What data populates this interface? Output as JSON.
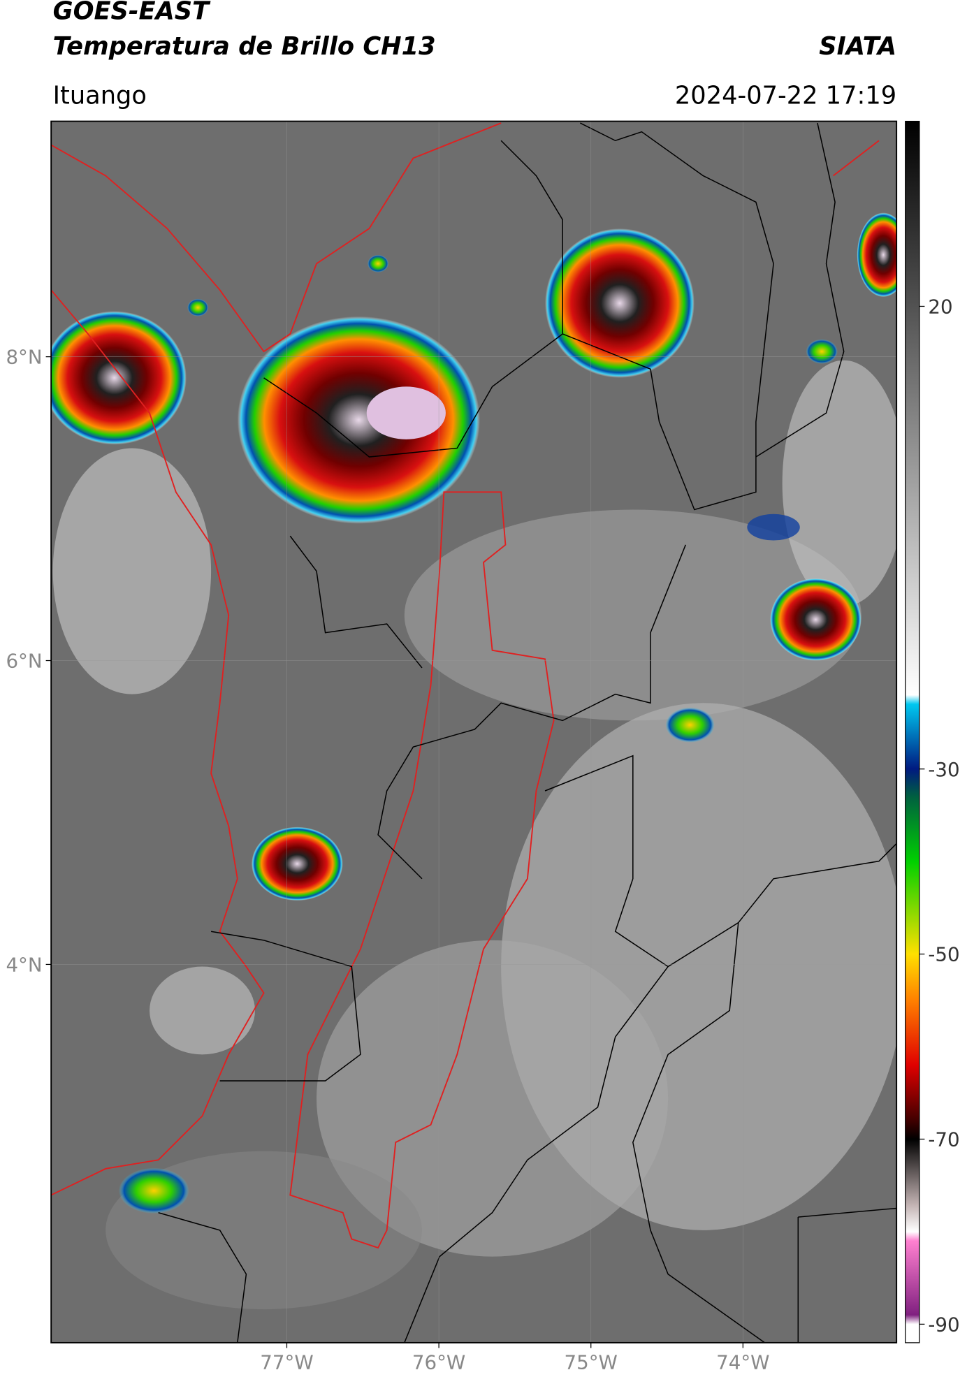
{
  "header": {
    "title": "GOES-EAST",
    "subtitle": "Temperatura de Brillo CH13",
    "source": "SIATA",
    "location": "Ituango",
    "datetime": "2024-07-22 17:19"
  },
  "map": {
    "xlim": [
      -78.55,
      -72.99
    ],
    "ylim": [
      1.51,
      9.55
    ],
    "xticks": [
      {
        "value": -77,
        "label": "77°W"
      },
      {
        "value": -76,
        "label": "76°W"
      },
      {
        "value": -75,
        "label": "75°W"
      },
      {
        "value": -74,
        "label": "74°W"
      }
    ],
    "yticks": [
      {
        "value": 8,
        "label": "8°N"
      },
      {
        "value": 6,
        "label": "6°N"
      },
      {
        "value": 4,
        "label": "4°N"
      }
    ],
    "grid": true
  },
  "colorbar": {
    "lim": [
      -92,
      40
    ],
    "ticks": [
      20,
      -30,
      -50,
      -70,
      -90
    ],
    "colors": [
      {
        "value": 40,
        "color": "#000000"
      },
      {
        "value": -22,
        "color": "#ffffff"
      },
      {
        "value": -23,
        "color": "#00c8f0"
      },
      {
        "value": -30,
        "color": "#001a80"
      },
      {
        "value": -33,
        "color": "#006040"
      },
      {
        "value": -40,
        "color": "#00d000"
      },
      {
        "value": -50,
        "color": "#ffe000"
      },
      {
        "value": -55,
        "color": "#ff8000"
      },
      {
        "value": -62,
        "color": "#e00000"
      },
      {
        "value": -68,
        "color": "#400000"
      },
      {
        "value": -70,
        "color": "#000000"
      },
      {
        "value": -77,
        "color": "#c0b0b0"
      },
      {
        "value": -80,
        "color": "#ffffff"
      },
      {
        "value": -81,
        "color": "#ff80d0"
      },
      {
        "value": -89,
        "color": "#802080"
      },
      {
        "value": -90,
        "color": "#ffffff"
      }
    ]
  }
}
